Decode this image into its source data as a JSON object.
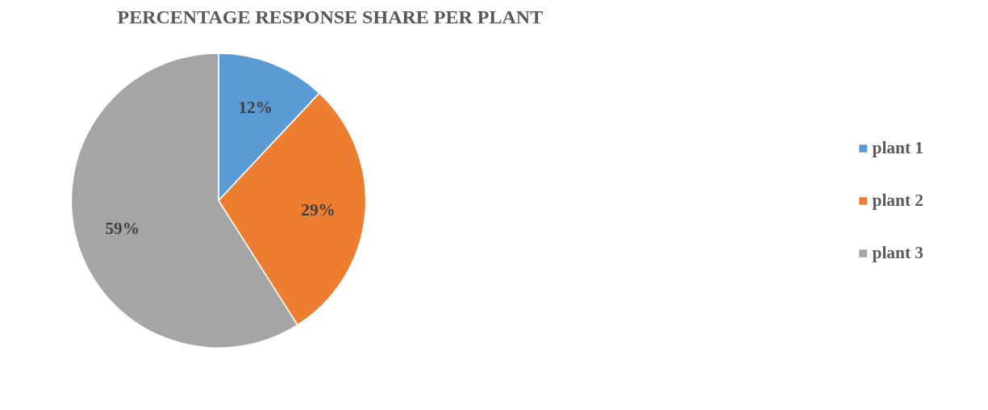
{
  "chart_data": {
    "type": "pie",
    "title": "PERCENTAGE RESPONSE SHARE PER PLANT",
    "categories": [
      "plant 1",
      "plant 2",
      "plant 3"
    ],
    "values": [
      12,
      29,
      59
    ],
    "colors": [
      "#5b9bd5",
      "#ed7d31",
      "#a5a5a5"
    ],
    "value_labels": [
      "12%",
      "29%",
      "59%"
    ],
    "legend": "right"
  }
}
